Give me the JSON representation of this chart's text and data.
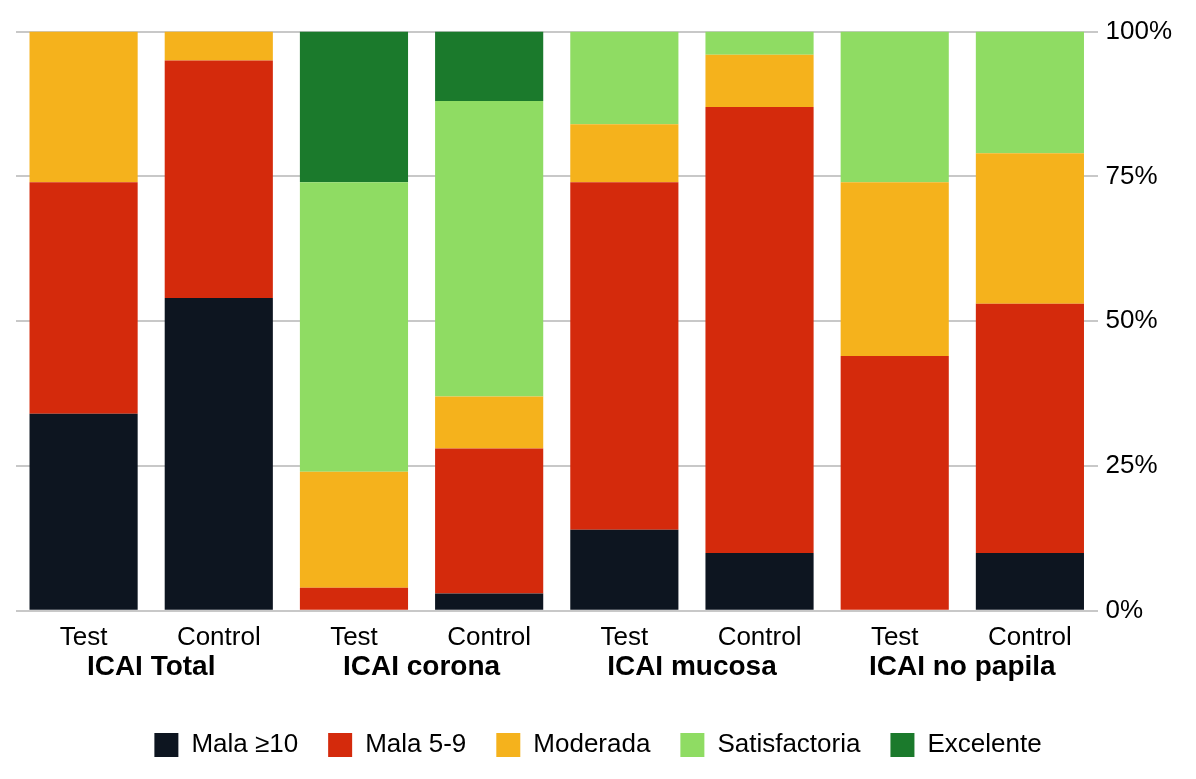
{
  "chart_data": {
    "type": "bar",
    "stacked": true,
    "categories": [
      "Test",
      "Control",
      "Test",
      "Control",
      "Test",
      "Control",
      "Test",
      "Control"
    ],
    "series": [
      {
        "name": "Mala ≥10",
        "color": "#0d1520",
        "values": [
          34,
          54,
          0,
          3,
          14,
          10,
          0,
          10
        ]
      },
      {
        "name": "Mala 5-9",
        "color": "#d42a0c",
        "values": [
          40,
          41,
          4,
          25,
          60,
          77,
          44,
          43
        ]
      },
      {
        "name": "Moderada",
        "color": "#f5b21c",
        "values": [
          26,
          5,
          20,
          9,
          10,
          9,
          30,
          26
        ]
      },
      {
        "name": "Satisfactoria",
        "color": "#8fdc63",
        "values": [
          0,
          0,
          50,
          51,
          16,
          4,
          26,
          21
        ]
      },
      {
        "name": "Excelente",
        "color": "#1b7a2c",
        "values": [
          0,
          0,
          26,
          12,
          0,
          0,
          0,
          0
        ]
      }
    ],
    "annotations": [
      "ICAI Total",
      "ICAI corona",
      "ICAI mucosa",
      "ICAI no papila"
    ],
    "ylim": [
      0,
      100
    ],
    "yticks": [
      {
        "value": 0,
        "label": "0%"
      },
      {
        "value": 25,
        "label": "25%"
      },
      {
        "value": 50,
        "label": "50%"
      },
      {
        "value": 75,
        "label": "75%"
      },
      {
        "value": 100,
        "label": "100%"
      }
    ],
    "grid": "y",
    "legend": "bottom"
  }
}
